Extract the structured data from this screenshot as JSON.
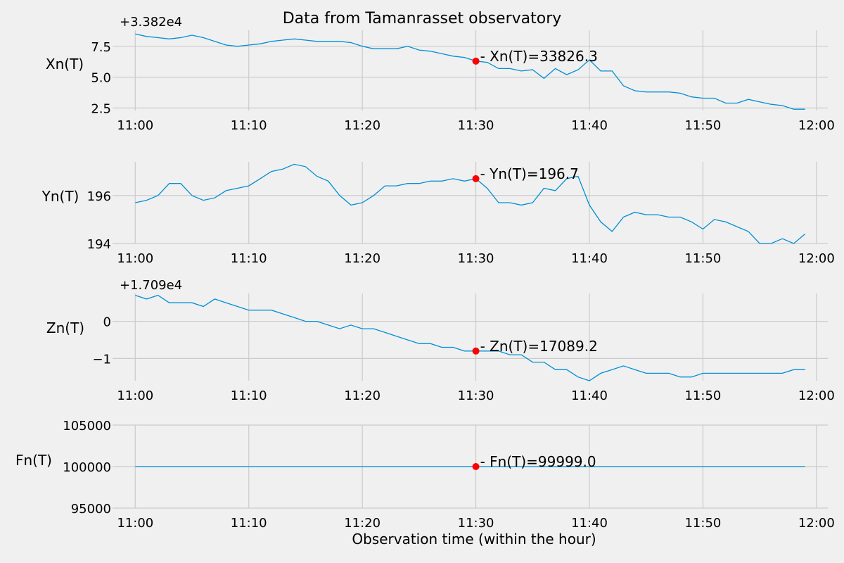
{
  "chart_data": [
    {
      "type": "line",
      "title": "Data from  Tamanrasset observatory",
      "ylabel": "Xn(T)",
      "offset_label": "+3.382e4",
      "y_offset": 33820,
      "ylim": [
        2.3,
        8.8
      ],
      "yticks": [
        2.5,
        5.0,
        7.5
      ],
      "ytick_labels": [
        "2.5",
        "5.0",
        "7.5"
      ],
      "x_start": "11:00",
      "x": [
        "11:00",
        "11:01",
        "11:02",
        "11:03",
        "11:04",
        "11:05",
        "11:06",
        "11:07",
        "11:08",
        "11:09",
        "11:10",
        "11:11",
        "11:12",
        "11:13",
        "11:14",
        "11:15",
        "11:16",
        "11:17",
        "11:18",
        "11:19",
        "11:20",
        "11:21",
        "11:22",
        "11:23",
        "11:24",
        "11:25",
        "11:26",
        "11:27",
        "11:28",
        "11:29",
        "11:30",
        "11:31",
        "11:32",
        "11:33",
        "11:34",
        "11:35",
        "11:36",
        "11:37",
        "11:38",
        "11:39",
        "11:40",
        "11:41",
        "11:42",
        "11:43",
        "11:44",
        "11:45",
        "11:46",
        "11:47",
        "11:48",
        "11:49",
        "11:50",
        "11:51",
        "11:52",
        "11:53",
        "11:54",
        "11:55",
        "11:56",
        "11:57",
        "11:58",
        "11:59"
      ],
      "values": [
        33828.5,
        33828.3,
        33828.2,
        33828.1,
        33828.2,
        33828.4,
        33828.2,
        33827.9,
        33827.6,
        33827.5,
        33827.6,
        33827.7,
        33827.9,
        33828.0,
        33828.1,
        33828.0,
        33827.9,
        33827.9,
        33827.9,
        33827.8,
        33827.5,
        33827.3,
        33827.3,
        33827.3,
        33827.5,
        33827.2,
        33827.1,
        33826.9,
        33826.7,
        33826.6,
        33826.3,
        33826.2,
        33825.7,
        33825.7,
        33825.5,
        33825.6,
        33824.9,
        33825.7,
        33825.2,
        33825.6,
        33826.4,
        33825.5,
        33825.5,
        33824.3,
        33823.9,
        33823.8,
        33823.8,
        33823.8,
        33823.7,
        33823.4,
        33823.3,
        33823.3,
        33822.9,
        33822.9,
        33823.2,
        33823.0,
        33822.8,
        33822.7,
        33822.4,
        33822.4
      ],
      "marker": {
        "x": "11:30",
        "value": 33826.3,
        "label": "- Xn(T)=33826.3"
      }
    },
    {
      "type": "line",
      "ylabel": "Yn(T)",
      "ylim": [
        194.0,
        197.4
      ],
      "yticks": [
        194,
        196
      ],
      "ytick_labels": [
        "194",
        "196"
      ],
      "x_start": "11:00",
      "x": [
        "11:00",
        "11:01",
        "11:02",
        "11:03",
        "11:04",
        "11:05",
        "11:06",
        "11:07",
        "11:08",
        "11:09",
        "11:10",
        "11:11",
        "11:12",
        "11:13",
        "11:14",
        "11:15",
        "11:16",
        "11:17",
        "11:18",
        "11:19",
        "11:20",
        "11:21",
        "11:22",
        "11:23",
        "11:24",
        "11:25",
        "11:26",
        "11:27",
        "11:28",
        "11:29",
        "11:30",
        "11:31",
        "11:32",
        "11:33",
        "11:34",
        "11:35",
        "11:36",
        "11:37",
        "11:38",
        "11:39",
        "11:40",
        "11:41",
        "11:42",
        "11:43",
        "11:44",
        "11:45",
        "11:46",
        "11:47",
        "11:48",
        "11:49",
        "11:50",
        "11:51",
        "11:52",
        "11:53",
        "11:54",
        "11:55",
        "11:56",
        "11:57",
        "11:58",
        "11:59"
      ],
      "values": [
        195.7,
        195.8,
        196.0,
        196.5,
        196.5,
        196.0,
        195.8,
        195.9,
        196.2,
        196.3,
        196.4,
        196.7,
        197.0,
        197.1,
        197.3,
        197.2,
        196.8,
        196.6,
        196.0,
        195.6,
        195.7,
        196.0,
        196.4,
        196.4,
        196.5,
        196.5,
        196.6,
        196.6,
        196.7,
        196.6,
        196.7,
        196.3,
        195.7,
        195.7,
        195.6,
        195.7,
        196.3,
        196.2,
        196.7,
        196.8,
        195.6,
        194.9,
        194.5,
        195.1,
        195.3,
        195.2,
        195.2,
        195.1,
        195.1,
        194.9,
        194.6,
        195.0,
        194.9,
        194.7,
        194.5,
        194.0,
        194.0,
        194.2,
        194.0,
        194.4
      ],
      "marker": {
        "x": "11:30",
        "value": 196.7,
        "label": "- Yn(T)=196.7"
      }
    },
    {
      "type": "line",
      "ylabel": "Zn(T)",
      "offset_label": "+1.709e4",
      "y_offset": 17090,
      "ylim": [
        -1.6,
        0.75
      ],
      "yticks": [
        -1,
        0
      ],
      "ytick_labels": [
        "−1",
        "0"
      ],
      "x_start": "11:00",
      "x": [
        "11:00",
        "11:01",
        "11:02",
        "11:03",
        "11:04",
        "11:05",
        "11:06",
        "11:07",
        "11:08",
        "11:09",
        "11:10",
        "11:11",
        "11:12",
        "11:13",
        "11:14",
        "11:15",
        "11:16",
        "11:17",
        "11:18",
        "11:19",
        "11:20",
        "11:21",
        "11:22",
        "11:23",
        "11:24",
        "11:25",
        "11:26",
        "11:27",
        "11:28",
        "11:29",
        "11:30",
        "11:31",
        "11:32",
        "11:33",
        "11:34",
        "11:35",
        "11:36",
        "11:37",
        "11:38",
        "11:39",
        "11:40",
        "11:41",
        "11:42",
        "11:43",
        "11:44",
        "11:45",
        "11:46",
        "11:47",
        "11:48",
        "11:49",
        "11:50",
        "11:51",
        "11:52",
        "11:53",
        "11:54",
        "11:55",
        "11:56",
        "11:57",
        "11:58",
        "11:59"
      ],
      "values": [
        17090.7,
        17090.6,
        17090.7,
        17090.5,
        17090.5,
        17090.5,
        17090.4,
        17090.6,
        17090.5,
        17090.4,
        17090.3,
        17090.3,
        17090.3,
        17090.2,
        17090.1,
        17090.0,
        17090.0,
        17089.9,
        17089.8,
        17089.9,
        17089.8,
        17089.8,
        17089.7,
        17089.6,
        17089.5,
        17089.4,
        17089.4,
        17089.3,
        17089.3,
        17089.2,
        17089.2,
        17089.2,
        17089.2,
        17089.1,
        17089.1,
        17088.9,
        17088.9,
        17088.7,
        17088.7,
        17088.5,
        17088.4,
        17088.6,
        17088.7,
        17088.8,
        17088.7,
        17088.6,
        17088.6,
        17088.6,
        17088.5,
        17088.5,
        17088.6,
        17088.6,
        17088.6,
        17088.6,
        17088.6,
        17088.6,
        17088.6,
        17088.6,
        17088.7,
        17088.7
      ],
      "marker": {
        "x": "11:30",
        "value": 17089.2,
        "label": "- Zn(T)=17089.2"
      }
    },
    {
      "type": "line",
      "ylabel": "Fn(T)",
      "ylim": [
        95000,
        105000
      ],
      "yticks": [
        95000,
        100000,
        105000
      ],
      "ytick_labels": [
        "95000",
        "100000",
        "105000"
      ],
      "xlabel": "Observation time (within the hour)",
      "x_start": "11:00",
      "x": [
        "11:00",
        "11:59"
      ],
      "values": [
        99999.0,
        99999.0
      ],
      "marker": {
        "x": "11:30",
        "value": 99999.0,
        "label": "- Fn(T)=99999.0"
      }
    }
  ],
  "x_axis": {
    "range": [
      "10:58",
      "12:01"
    ],
    "ticks": [
      "11:00",
      "11:10",
      "11:20",
      "11:30",
      "11:40",
      "11:50",
      "12:00"
    ]
  },
  "colors": {
    "line": "#008fd5",
    "marker": "#ff0000",
    "grid": "#cbcbcb",
    "background": "#f0f0f0"
  }
}
